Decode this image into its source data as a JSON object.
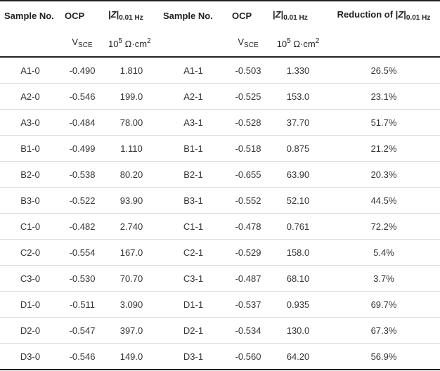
{
  "header": {
    "sample_no_1": "Sample No.",
    "ocp_1": "OCP",
    "z_prefix_1": "|",
    "z_var_1": "Z",
    "z_suffix_1": "|",
    "z_sub_1": "0.01 Hz",
    "sample_no_2": "Sample No.",
    "ocp_2": "OCP",
    "z_prefix_2": "|",
    "z_var_2": "Z",
    "z_suffix_2": "|",
    "z_sub_2": "0.01 Hz",
    "reduction_prefix": "Reduction of |",
    "reduction_var": "Z",
    "reduction_suffix": "|",
    "reduction_sub": "0.01 Hz"
  },
  "units": {
    "ocp_main_1": "V",
    "ocp_sub_1": "SCE",
    "z_base_1": "10",
    "z_exp_1": "5",
    "z_unit_1": " Ω·cm",
    "z_unit_exp_1": "2",
    "ocp_main_2": "V",
    "ocp_sub_2": "SCE",
    "z_base_2": "10",
    "z_exp_2": "5",
    "z_unit_2": " Ω·cm",
    "z_unit_exp_2": "2"
  },
  "rows": [
    {
      "s0": "A1-0",
      "ocp0": "-0.490",
      "z0": "1.810",
      "s1": "A1-1",
      "ocp1": "-0.503",
      "z1": "1.330",
      "red": "26.5%"
    },
    {
      "s0": "A2-0",
      "ocp0": "-0.546",
      "z0": "199.0",
      "s1": "A2-1",
      "ocp1": "-0.525",
      "z1": "153.0",
      "red": "23.1%"
    },
    {
      "s0": "A3-0",
      "ocp0": "-0.484",
      "z0": "78.00",
      "s1": "A3-1",
      "ocp1": "-0.528",
      "z1": "37.70",
      "red": "51.7%"
    },
    {
      "s0": "B1-0",
      "ocp0": "-0.499",
      "z0": "1.110",
      "s1": "B1-1",
      "ocp1": "-0.518",
      "z1": "0.875",
      "red": "21.2%"
    },
    {
      "s0": "B2-0",
      "ocp0": "-0.538",
      "z0": "80.20",
      "s1": "B2-1",
      "ocp1": "-0.655",
      "z1": "63.90",
      "red": "20.3%"
    },
    {
      "s0": "B3-0",
      "ocp0": "-0.522",
      "z0": "93.90",
      "s1": "B3-1",
      "ocp1": "-0.552",
      "z1": "52.10",
      "red": "44.5%"
    },
    {
      "s0": "C1-0",
      "ocp0": "-0.482",
      "z0": "2.740",
      "s1": "C1-1",
      "ocp1": "-0.478",
      "z1": "0.761",
      "red": "72.2%"
    },
    {
      "s0": "C2-0",
      "ocp0": "-0.554",
      "z0": "167.0",
      "s1": "C2-1",
      "ocp1": "-0.529",
      "z1": "158.0",
      "red": "5.4%"
    },
    {
      "s0": "C3-0",
      "ocp0": "-0.530",
      "z0": "70.70",
      "s1": "C3-1",
      "ocp1": "-0.487",
      "z1": "68.10",
      "red": "3.7%"
    },
    {
      "s0": "D1-0",
      "ocp0": "-0.511",
      "z0": "3.090",
      "s1": "D1-1",
      "ocp1": "-0.537",
      "z1": "0.935",
      "red": "69.7%"
    },
    {
      "s0": "D2-0",
      "ocp0": "-0.547",
      "z0": "397.0",
      "s1": "D2-1",
      "ocp1": "-0.534",
      "z1": "130.0",
      "red": "67.3%"
    },
    {
      "s0": "D3-0",
      "ocp0": "-0.546",
      "z0": "149.0",
      "s1": "D3-1",
      "ocp1": "-0.560",
      "z1": "64.20",
      "red": "56.9%"
    }
  ]
}
